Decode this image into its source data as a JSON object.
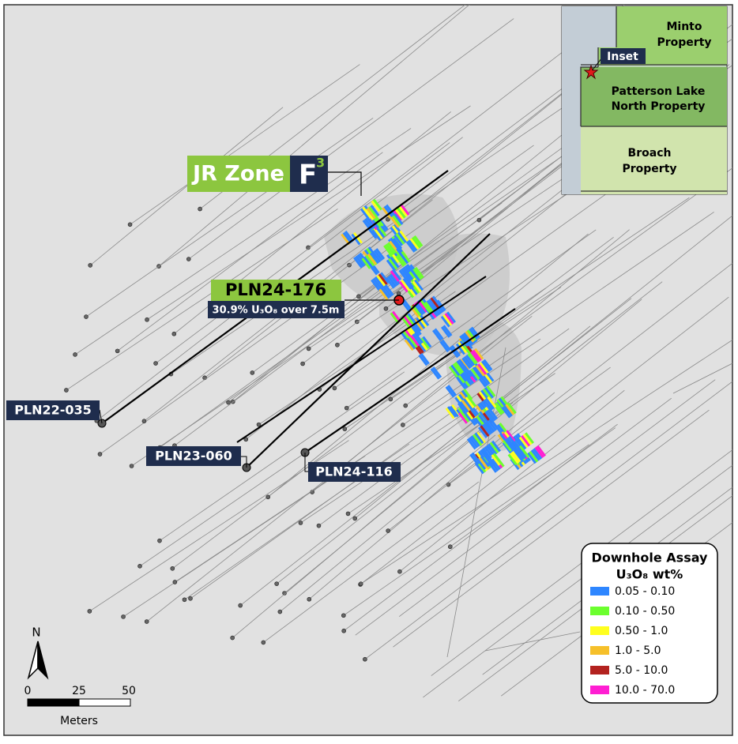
{
  "map": {
    "zone_label": {
      "name": "JR Zone",
      "badge": "F",
      "badge_sup": "3"
    },
    "highlight": {
      "hole": "PLN24-176",
      "result": "30.9% U₃O₈ over 7.5m"
    },
    "holes": [
      "PLN22-035",
      "PLN23-060",
      "PLN24-116"
    ],
    "inset": {
      "minto": [
        "Minto",
        "Property"
      ],
      "inset_tag": "Inset",
      "patterson": [
        "Patterson Lake",
        "North Property"
      ],
      "broach": [
        "Broach",
        "Property"
      ]
    },
    "legend": {
      "title": "Downhole Assay",
      "subtitle": "U₃O₈ wt%",
      "items": [
        {
          "label": "0.05 - 0.10",
          "color": "#2e86ff"
        },
        {
          "label": "0.10 - 0.50",
          "color": "#6cff2e"
        },
        {
          "label": "0.50 - 1.0",
          "color": "#ffff1e"
        },
        {
          "label": "1.0 - 5.0",
          "color": "#f6c02a"
        },
        {
          "label": "5.0 - 10.0",
          "color": "#b3221f"
        },
        {
          "label": "10.0 - 70.0",
          "color": "#ff1ed2"
        }
      ]
    },
    "north": "N",
    "scale": {
      "ticks": [
        "0",
        "25",
        "50"
      ],
      "unit": "Meters"
    }
  }
}
